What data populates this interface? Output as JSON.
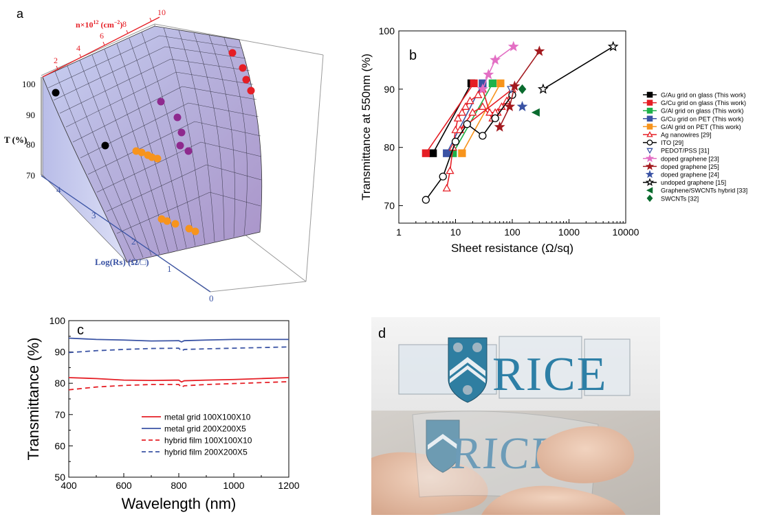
{
  "panels": {
    "a": {
      "letter": "a",
      "z_label": "T (%)",
      "y_label": "Log(Rs) (Ω/□)",
      "x_label_main": "n×10",
      "x_label_exp": "12",
      "x_label_unit": "(cm",
      "x_label_unit_exp": "−2",
      "x_label_close": ")",
      "z_ticks": [
        "100",
        "90",
        "80",
        "70"
      ],
      "y_ticks": [
        "4",
        "3",
        "2",
        "1",
        "0"
      ],
      "x_ticks": [
        "2",
        "4",
        "6",
        "8",
        "10"
      ]
    },
    "b": {
      "letter": "b"
    },
    "c": {
      "letter": "c"
    },
    "d": {
      "letter": "d",
      "logo_text_top": "RICE",
      "logo_text_bottom": "RICE"
    }
  },
  "chart_data": [
    {
      "type": "scatter",
      "panel": "a",
      "z_axis": {
        "label": "T (%)",
        "range": [
          70,
          100
        ]
      },
      "y_axis": {
        "label": "Log(Rs) (Ω/□)",
        "range": [
          0,
          4
        ]
      },
      "x_axis": {
        "label": "n×10^12 (cm^-2)",
        "range": [
          0,
          10
        ]
      },
      "surface": "transmittance surface over carrier density and log sheet resistance",
      "series": [
        {
          "color": "#000000",
          "points": [
            [
              97.5
            ],
            [
              86
            ]
          ]
        },
        {
          "color": "#8e2a8e",
          "points": [
            [
              96
            ],
            [
              92
            ],
            [
              90
            ],
            [
              87
            ],
            [
              85.5
            ]
          ]
        },
        {
          "color": "#e51e25",
          "points": [
            [
              100
            ],
            [
              98
            ],
            [
              96
            ],
            [
              94
            ]
          ]
        },
        {
          "color": "#f7941d",
          "points": [
            [
              84
            ],
            [
              83.5
            ],
            [
              83
            ],
            [
              82.5
            ],
            [
              75
            ],
            [
              74.5
            ],
            [
              74
            ],
            [
              73
            ],
            [
              72.5
            ]
          ]
        }
      ]
    },
    {
      "type": "line",
      "panel": "b",
      "xlabel": "Sheet resistance (Ω/sq)",
      "ylabel": "Transmittance at 550nm (%)",
      "xscale": "log",
      "xlim": [
        1,
        10000
      ],
      "ylim": [
        67,
        100
      ],
      "x_ticks": [
        "1",
        "10",
        "100",
        "1000",
        "10000"
      ],
      "y_ticks": [
        "70",
        "80",
        "90",
        "100"
      ],
      "legend_position": "right",
      "series": [
        {
          "name": "G/Au grid on glass (This work)",
          "color": "#000000",
          "marker": "square",
          "filled": true,
          "line": true,
          "points": [
            [
              4,
              79
            ],
            [
              19,
              91
            ]
          ]
        },
        {
          "name": "G/Cu grid on glass (This work)",
          "color": "#e51e25",
          "marker": "square",
          "filled": true,
          "line": true,
          "points": [
            [
              3,
              79
            ],
            [
              21,
              91
            ]
          ]
        },
        {
          "name": "G/Al grid on glass (This work)",
          "color": "#1eb24a",
          "marker": "square",
          "filled": true,
          "line": true,
          "points": [
            [
              9,
              79
            ],
            [
              45,
              91
            ]
          ]
        },
        {
          "name": "G/Cu grid on PET (This work)",
          "color": "#3a53a4",
          "marker": "square",
          "filled": true,
          "line": true,
          "points": [
            [
              7,
              79
            ],
            [
              30,
              91
            ]
          ]
        },
        {
          "name": "G/Al grid on PET (This work)",
          "color": "#f7941d",
          "marker": "square",
          "filled": true,
          "line": true,
          "points": [
            [
              13,
              79
            ],
            [
              62,
              91
            ]
          ]
        },
        {
          "name": "Ag nanowires [29]",
          "color": "#e51e25",
          "marker": "triangle",
          "filled": false,
          "line": true,
          "points": [
            [
              7,
              73
            ],
            [
              8,
              76
            ],
            [
              9,
              80
            ],
            [
              10,
              83
            ],
            [
              11,
              85
            ],
            [
              13,
              86
            ],
            [
              15,
              87
            ],
            [
              18,
              88
            ],
            [
              25,
              89
            ],
            [
              30,
              90
            ],
            [
              40,
              86
            ],
            [
              55,
              86
            ],
            [
              65,
              87
            ],
            [
              80,
              88
            ],
            [
              100,
              90
            ],
            [
              12,
              83
            ],
            [
              20,
              86
            ],
            [
              30,
              87
            ],
            [
              45,
              85
            ],
            [
              50,
              86
            ]
          ]
        },
        {
          "name": "ITO [29]",
          "color": "#000000",
          "marker": "circle",
          "filled": false,
          "line": true,
          "points": [
            [
              3,
              71
            ],
            [
              6,
              75
            ],
            [
              10,
              81
            ],
            [
              16,
              84
            ],
            [
              30,
              82
            ],
            [
              50,
              85
            ],
            [
              100,
              89
            ]
          ]
        },
        {
          "name": "PEDOT/PSS [31]",
          "color": "#3a53a4",
          "marker": "triangle-down",
          "filled": false,
          "line": false,
          "points": [
            [
              95,
              90
            ]
          ]
        },
        {
          "name": "doped graphene [23]",
          "color": "#e36fc4",
          "marker": "star",
          "filled": true,
          "line": true,
          "points": [
            [
              30,
              90
            ],
            [
              38,
              92.5
            ],
            [
              50,
              95
            ],
            [
              105,
              97.3
            ]
          ]
        },
        {
          "name": "doped graphene [25]",
          "color": "#a31a1f",
          "marker": "star",
          "filled": true,
          "line": true,
          "points": [
            [
              60,
              83.5
            ],
            [
              90,
              87
            ],
            [
              110,
              90.5
            ],
            [
              300,
              96.5
            ]
          ]
        },
        {
          "name": "doped graphene [24]",
          "color": "#3a53a4",
          "marker": "star",
          "filled": true,
          "line": false,
          "points": [
            [
              150,
              87
            ]
          ]
        },
        {
          "name": "undoped graphene [15]",
          "color": "#000000",
          "marker": "star",
          "filled": false,
          "line": true,
          "points": [
            [
              350,
              90
            ],
            [
              6000,
              97.3
            ]
          ]
        },
        {
          "name": "Graphene/SWCNTs hybrid [33]",
          "color": "#0a6b2e",
          "marker": "triangle-left",
          "filled": true,
          "line": false,
          "points": [
            [
              260,
              86
            ]
          ]
        },
        {
          "name": "SWCNTs [32]",
          "color": "#0a6b2e",
          "marker": "diamond",
          "filled": true,
          "line": false,
          "points": [
            [
              150,
              90
            ]
          ]
        }
      ]
    },
    {
      "type": "line",
      "panel": "c",
      "xlabel": "Wavelength (nm)",
      "ylabel": "Transmittance (%)",
      "xlim": [
        400,
        1200
      ],
      "ylim": [
        50,
        100
      ],
      "x_ticks": [
        "400",
        "600",
        "800",
        "1000",
        "1200"
      ],
      "y_ticks": [
        "50",
        "60",
        "70",
        "80",
        "90",
        "100"
      ],
      "legend_position": "lower-right",
      "series": [
        {
          "name": "metal grid 100X100X10",
          "color": "#e51e25",
          "dash": false,
          "points": [
            [
              400,
              81.8
            ],
            [
              500,
              81.5
            ],
            [
              600,
              81
            ],
            [
              700,
              80.9
            ],
            [
              800,
              81
            ],
            [
              810,
              80.4
            ],
            [
              820,
              80.8
            ],
            [
              900,
              81
            ],
            [
              1000,
              81.2
            ],
            [
              1100,
              81.5
            ],
            [
              1200,
              81.8
            ]
          ]
        },
        {
          "name": "metal grid 200X200X5",
          "color": "#3a53a4",
          "dash": false,
          "points": [
            [
              400,
              94.4
            ],
            [
              500,
              94
            ],
            [
              600,
              93.8
            ],
            [
              700,
              93.5
            ],
            [
              800,
              93.6
            ],
            [
              810,
              93.2
            ],
            [
              820,
              93.6
            ],
            [
              900,
              93.8
            ],
            [
              1000,
              94
            ],
            [
              1100,
              94
            ],
            [
              1200,
              94
            ]
          ]
        },
        {
          "name": "hybrid film 100X100X10",
          "color": "#e51e25",
          "dash": true,
          "points": [
            [
              400,
              77.9
            ],
            [
              500,
              78.8
            ],
            [
              600,
              79.3
            ],
            [
              700,
              79.6
            ],
            [
              800,
              79.6
            ],
            [
              810,
              78.7
            ],
            [
              820,
              79.2
            ],
            [
              900,
              79.6
            ],
            [
              1000,
              79.9
            ],
            [
              1100,
              80.2
            ],
            [
              1200,
              80.5
            ]
          ]
        },
        {
          "name": "hybrid film 200X200X5",
          "color": "#3a53a4",
          "dash": true,
          "points": [
            [
              400,
              89.8
            ],
            [
              500,
              90.4
            ],
            [
              600,
              90.8
            ],
            [
              700,
              91.1
            ],
            [
              800,
              91.2
            ],
            [
              810,
              90.3
            ],
            [
              820,
              90.8
            ],
            [
              900,
              91
            ],
            [
              1000,
              91.2
            ],
            [
              1100,
              91.4
            ],
            [
              1200,
              91.6
            ]
          ]
        }
      ]
    }
  ]
}
